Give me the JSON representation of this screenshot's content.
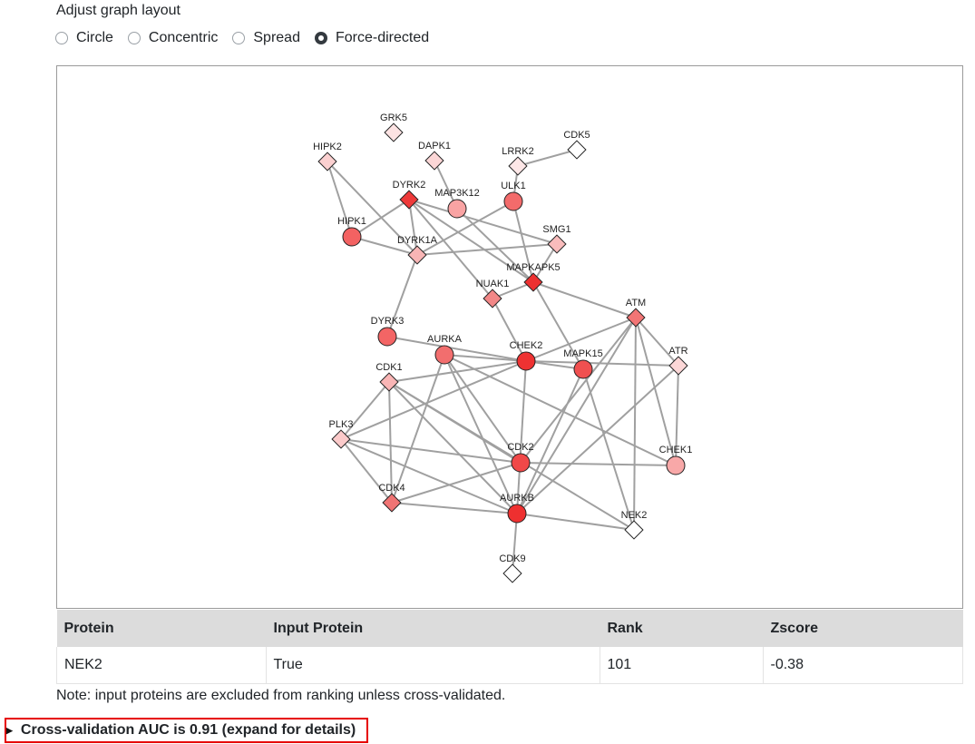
{
  "layout": {
    "title": "Adjust graph layout",
    "options": [
      "Circle",
      "Concentric",
      "Spread",
      "Force-directed"
    ],
    "selected": "Force-directed"
  },
  "graph": {
    "node_outline": "#222222",
    "edge_color": "#a0a0a0",
    "nodes": [
      {
        "id": "GRK5",
        "label": "GRK5",
        "shape": "diamond",
        "color": "#fde3e3"
      },
      {
        "id": "CDK5",
        "label": "CDK5",
        "shape": "diamond",
        "color": "#ffffff"
      },
      {
        "id": "HIPK2",
        "label": "HIPK2",
        "shape": "diamond",
        "color": "#fbd0d0"
      },
      {
        "id": "DAPK1",
        "label": "DAPK1",
        "shape": "diamond",
        "color": "#fbd6d6"
      },
      {
        "id": "LRRK2",
        "label": "LRRK2",
        "shape": "diamond",
        "color": "#fde7e7"
      },
      {
        "id": "DYRK2",
        "label": "DYRK2",
        "shape": "diamond",
        "color": "#ee3a3a"
      },
      {
        "id": "MAP3K12",
        "label": "MAP3K12",
        "shape": "circle",
        "color": "#f9a3a3"
      },
      {
        "id": "ULK1",
        "label": "ULK1",
        "shape": "circle",
        "color": "#f36b6b"
      },
      {
        "id": "HIPK1",
        "label": "HIPK1",
        "shape": "circle",
        "color": "#f36262"
      },
      {
        "id": "DYRK1A",
        "label": "DYRK1A",
        "shape": "diamond",
        "color": "#f8b5b5"
      },
      {
        "id": "SMG1",
        "label": "SMG1",
        "shape": "diamond",
        "color": "#f9bcbc"
      },
      {
        "id": "MAPKAPK5",
        "label": "MAPKAPK5",
        "shape": "diamond",
        "color": "#ed3030"
      },
      {
        "id": "NUAK1",
        "label": "NUAK1",
        "shape": "diamond",
        "color": "#f28787"
      },
      {
        "id": "ATM",
        "label": "ATM",
        "shape": "diamond",
        "color": "#f27575"
      },
      {
        "id": "DYRK3",
        "label": "DYRK3",
        "shape": "circle",
        "color": "#f36565"
      },
      {
        "id": "AURKA",
        "label": "AURKA",
        "shape": "circle",
        "color": "#f26e6e"
      },
      {
        "id": "CHEK2",
        "label": "CHEK2",
        "shape": "circle",
        "color": "#ee3232"
      },
      {
        "id": "MAPK15",
        "label": "MAPK15",
        "shape": "circle",
        "color": "#f05050"
      },
      {
        "id": "ATR",
        "label": "ATR",
        "shape": "diamond",
        "color": "#fcd7d7"
      },
      {
        "id": "CDK1",
        "label": "CDK1",
        "shape": "diamond",
        "color": "#f9b5b5"
      },
      {
        "id": "PLK3",
        "label": "PLK3",
        "shape": "diamond",
        "color": "#fbcaca"
      },
      {
        "id": "CDK2",
        "label": "CDK2",
        "shape": "circle",
        "color": "#f04848"
      },
      {
        "id": "CHEK1",
        "label": "CHEK1",
        "shape": "circle",
        "color": "#f8a8a8"
      },
      {
        "id": "CDK4",
        "label": "CDK4",
        "shape": "diamond",
        "color": "#f07474"
      },
      {
        "id": "AURKB",
        "label": "AURKB",
        "shape": "circle",
        "color": "#ee3030"
      },
      {
        "id": "NEK2",
        "label": "NEK2",
        "shape": "diamond",
        "color": "#ffffff"
      },
      {
        "id": "CDK9",
        "label": "CDK9",
        "shape": "diamond",
        "color": "#ffffff"
      }
    ],
    "edges": [
      [
        "HIPK2",
        "HIPK1"
      ],
      [
        "HIPK2",
        "DYRK1A"
      ],
      [
        "HIPK1",
        "DYRK2"
      ],
      [
        "HIPK1",
        "DYRK1A"
      ],
      [
        "DAPK1",
        "MAP3K12"
      ],
      [
        "LRRK2",
        "CDK5"
      ],
      [
        "ULK1",
        "LRRK2"
      ],
      [
        "DYRK2",
        "DYRK1A"
      ],
      [
        "DYRK2",
        "NUAK1"
      ],
      [
        "DYRK2",
        "MAPKAPK5"
      ],
      [
        "DYRK2",
        "SMG1"
      ],
      [
        "MAP3K12",
        "MAPKAPK5"
      ],
      [
        "ULK1",
        "DYRK1A"
      ],
      [
        "ULK1",
        "MAPKAPK5"
      ],
      [
        "DYRK1A",
        "SMG1"
      ],
      [
        "DYRK1A",
        "DYRK3"
      ],
      [
        "SMG1",
        "MAPKAPK5"
      ],
      [
        "NUAK1",
        "MAPKAPK5"
      ],
      [
        "MAPKAPK5",
        "ATM"
      ],
      [
        "NUAK1",
        "CHEK2"
      ],
      [
        "MAPKAPK5",
        "MAPK15"
      ],
      [
        "DYRK3",
        "CHEK2"
      ],
      [
        "AURKA",
        "CHEK2"
      ],
      [
        "CDK1",
        "CHEK2"
      ],
      [
        "PLK3",
        "CHEK2"
      ],
      [
        "CHEK2",
        "ATM"
      ],
      [
        "CHEK2",
        "MAPK15"
      ],
      [
        "CHEK2",
        "ATR"
      ],
      [
        "CHEK2",
        "AURKB"
      ],
      [
        "ATM",
        "ATR"
      ],
      [
        "ATM",
        "CHEK1"
      ],
      [
        "ATM",
        "CDK2"
      ],
      [
        "ATM",
        "AURKB"
      ],
      [
        "ATM",
        "NEK2"
      ],
      [
        "ATR",
        "CHEK1"
      ],
      [
        "ATR",
        "AURKB"
      ],
      [
        "MAPK15",
        "NEK2"
      ],
      [
        "MAPK15",
        "AURKB"
      ],
      [
        "AURKA",
        "AURKB"
      ],
      [
        "AURKA",
        "CDK4"
      ],
      [
        "AURKA",
        "CDK2"
      ],
      [
        "AURKA",
        "CHEK1"
      ],
      [
        "CDK1",
        "CDK4"
      ],
      [
        "CDK1",
        "CDK2"
      ],
      [
        "CDK1",
        "AURKB"
      ],
      [
        "CDK1",
        "NEK2"
      ],
      [
        "CDK1",
        "PLK3"
      ],
      [
        "PLK3",
        "CDK4"
      ],
      [
        "PLK3",
        "CDK2"
      ],
      [
        "PLK3",
        "AURKB"
      ],
      [
        "CDK2",
        "CHEK1"
      ],
      [
        "CDK4",
        "CDK2"
      ],
      [
        "CDK4",
        "AURKB"
      ],
      [
        "AURKB",
        "NEK2"
      ],
      [
        "AURKB",
        "CDK9"
      ]
    ]
  },
  "table": {
    "headers": [
      "Protein",
      "Input Protein",
      "Rank",
      "Zscore"
    ],
    "rows": [
      [
        "NEK2",
        "True",
        "101",
        "-0.38"
      ]
    ]
  },
  "note": "Note: input proteins are excluded from ranking unless cross-validated.",
  "cv_summary": "Cross-validation AUC is 0.91 (expand for details)"
}
